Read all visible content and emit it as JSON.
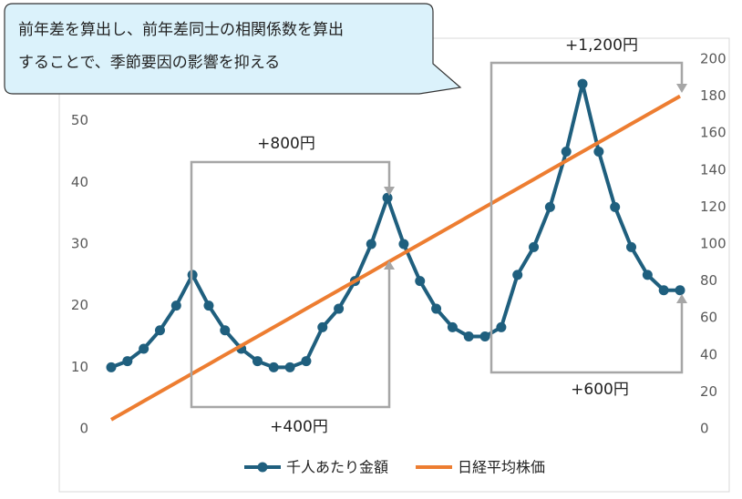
{
  "chart_data": {
    "type": "line",
    "callout": [
      "前年差を算出し、前年差同士の相関係数を算出",
      "することで、季節要因の影響を抑える"
    ],
    "annotations": [
      "+800円",
      "+400円",
      "+1,200円",
      "+600円"
    ],
    "categories": [
      null,
      null,
      null,
      null,
      null,
      null,
      null,
      null,
      null,
      null,
      null,
      null,
      null,
      null,
      null,
      null,
      null,
      null,
      null,
      null,
      null,
      null,
      null,
      null,
      null,
      null,
      null,
      null,
      null,
      null,
      null,
      null,
      null,
      null,
      null,
      null
    ],
    "series": [
      {
        "name": "千人あたり金額",
        "color": "#1f5f7e",
        "axis": "y",
        "values": [
          10,
          11,
          13,
          16,
          20,
          25,
          20,
          16,
          13,
          11,
          10,
          10,
          11,
          16.5,
          19.5,
          24,
          30,
          37.5,
          30,
          24,
          19.5,
          16.5,
          15,
          15,
          16.5,
          25,
          29.5,
          36,
          45,
          56,
          45,
          36,
          29.5,
          25,
          22.5,
          22.5
        ]
      },
      {
        "name": "日経平均株価",
        "color": "#ed7d31",
        "axis": "y2",
        "values": [
          5,
          10,
          15,
          20,
          25,
          30,
          35,
          40,
          45,
          50,
          55,
          60,
          65,
          70,
          75,
          80,
          85,
          90,
          95,
          100,
          105,
          110,
          115,
          120,
          125,
          130,
          135,
          140,
          145,
          150,
          155,
          160,
          165,
          170,
          175,
          180
        ]
      }
    ],
    "ylim": [
      0,
      60
    ],
    "yticks": [
      0,
      10,
      20,
      30,
      40,
      50
    ],
    "y2lim": [
      0,
      200
    ],
    "y2ticks": [
      0,
      20,
      40,
      60,
      80,
      100,
      120,
      140,
      160,
      180,
      200
    ]
  }
}
